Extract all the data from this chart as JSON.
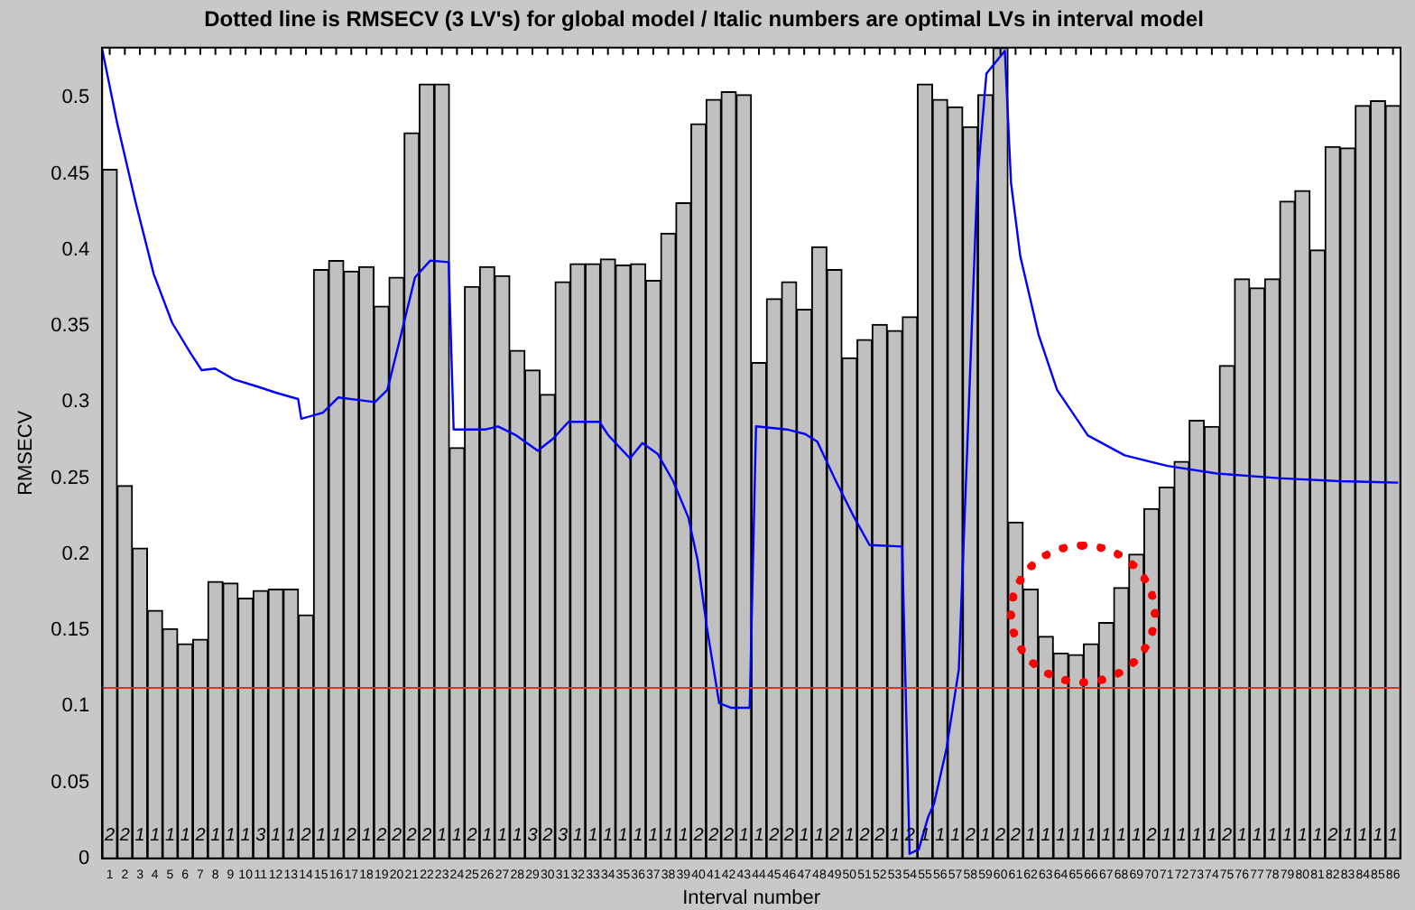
{
  "chart_data": {
    "type": "bar",
    "title": "Dotted line is RMSECV (3 LV's) for global model / Italic numbers are optimal LVs in interval model",
    "xlabel": "Interval number",
    "ylabel": "RMSECV",
    "x": [
      1,
      2,
      3,
      4,
      5,
      6,
      7,
      8,
      9,
      10,
      11,
      12,
      13,
      14,
      15,
      16,
      17,
      18,
      19,
      20,
      21,
      22,
      23,
      24,
      25,
      26,
      27,
      28,
      29,
      30,
      31,
      32,
      33,
      34,
      35,
      36,
      37,
      38,
      39,
      40,
      41,
      42,
      43,
      44,
      45,
      46,
      47,
      48,
      49,
      50,
      51,
      52,
      53,
      54,
      55,
      56,
      57,
      58,
      59,
      60,
      61,
      62,
      63,
      64,
      65,
      66,
      67,
      68,
      69,
      70,
      71,
      72,
      73,
      74,
      75,
      76,
      77,
      78,
      79,
      80,
      81,
      82,
      83,
      84,
      85,
      86
    ],
    "xlim": [
      0.5,
      86.5
    ],
    "xticks": [
      1,
      2,
      3,
      4,
      5,
      6,
      7,
      8,
      9,
      10,
      11,
      12,
      13,
      14,
      15,
      16,
      17,
      18,
      19,
      20,
      21,
      22,
      23,
      24,
      25,
      26,
      27,
      28,
      29,
      30,
      31,
      32,
      33,
      34,
      35,
      36,
      37,
      38,
      39,
      40,
      41,
      42,
      43,
      44,
      45,
      46,
      47,
      48,
      49,
      50,
      51,
      52,
      53,
      54,
      55,
      56,
      57,
      58,
      59,
      60,
      61,
      62,
      63,
      64,
      65,
      66,
      67,
      68,
      69,
      70,
      71,
      72,
      73,
      74,
      75,
      76,
      77,
      78,
      79,
      80,
      81,
      82,
      83,
      84,
      85,
      86
    ],
    "series": [
      {
        "color": "#c0c0c0",
        "values": [
          0.453,
          0.245,
          0.204,
          0.163,
          0.151,
          0.141,
          0.144,
          0.182,
          0.181,
          0.171,
          0.176,
          0.177,
          0.177,
          0.16,
          0.387,
          0.393,
          0.386,
          0.389,
          0.363,
          0.382,
          0.477,
          0.509,
          0.509,
          0.27,
          0.376,
          0.389,
          0.383,
          0.334,
          0.321,
          0.305,
          0.379,
          0.391,
          0.391,
          0.394,
          0.39,
          0.391,
          0.38,
          0.411,
          0.431,
          0.483,
          0.499,
          0.504,
          0.502,
          0.326,
          0.368,
          0.379,
          0.361,
          0.402,
          0.387,
          0.329,
          0.341,
          0.351,
          0.347,
          0.356,
          0.509,
          0.499,
          0.494,
          0.481,
          0.502,
          0.533,
          0.221,
          0.177,
          0.146,
          0.135,
          0.134,
          0.141,
          0.155,
          0.178,
          0.2,
          0.23,
          0.244,
          0.261,
          0.288,
          0.284,
          0.324,
          0.381,
          0.375,
          0.381,
          0.432,
          0.439,
          0.4,
          0.468,
          0.467,
          0.495,
          0.498,
          0.495
        ]
      },
      {
        "type": "line",
        "color": "#0000ff",
        "x": [
          0.5,
          1.48,
          2.7,
          3.92,
          5.14,
          6.36,
          7.09,
          7.98,
          9.21,
          10.84,
          12.06,
          13.48,
          13.69,
          15.12,
          16.13,
          18.57,
          19.39,
          20.19,
          21.22,
          22.23,
          23.45,
          23.78,
          25.9,
          26.72,
          27.94,
          29.35,
          30.38,
          31.39,
          33.43,
          34.04,
          35.46,
          36.28,
          37.29,
          38.32,
          39.33,
          39.94,
          40.55,
          41.37,
          42.17,
          43.39,
          43.81,
          45.84,
          47.06,
          47.87,
          49.1,
          50.32,
          51.33,
          53.49,
          53.98,
          54.59,
          55.2,
          55.6,
          56.42,
          57.24,
          57.85,
          58.46,
          59.07,
          60.29,
          60.7,
          61.31,
          62.53,
          63.75,
          65.79,
          68.23,
          71.07,
          74.33,
          78.4,
          82.47,
          86.34
        ],
        "values": [
          0.532,
          0.484,
          0.432,
          0.384,
          0.352,
          0.332,
          0.321,
          0.322,
          0.315,
          0.31,
          0.306,
          0.302,
          0.289,
          0.293,
          0.303,
          0.3,
          0.308,
          0.34,
          0.382,
          0.393,
          0.392,
          0.282,
          0.282,
          0.284,
          0.278,
          0.268,
          0.276,
          0.287,
          0.287,
          0.278,
          0.263,
          0.273,
          0.266,
          0.248,
          0.224,
          0.196,
          0.152,
          0.102,
          0.099,
          0.099,
          0.284,
          0.282,
          0.279,
          0.274,
          0.248,
          0.224,
          0.206,
          0.205,
          0.003,
          0.006,
          0.027,
          0.036,
          0.072,
          0.124,
          0.283,
          0.444,
          0.516,
          0.531,
          0.444,
          0.396,
          0.344,
          0.308,
          0.278,
          0.265,
          0.258,
          0.253,
          0.25,
          0.248,
          0.247
        ]
      }
    ],
    "ylim": [
      0,
      0.533
    ],
    "yticks": [
      0,
      0.05,
      0.1,
      0.15,
      0.2,
      0.25,
      0.3,
      0.35,
      0.4,
      0.45,
      0.5
    ],
    "ref_lines": [
      {
        "axis": "y",
        "value": 0.112,
        "color": "#e03020"
      }
    ],
    "marker": "none",
    "line_style": "solid",
    "legend": false,
    "grid": false,
    "annotations": [
      {
        "text": "2",
        "x": 1,
        "y": 0.015
      },
      {
        "text": "2",
        "x": 2,
        "y": 0.015
      },
      {
        "text": "1",
        "x": 3,
        "y": 0.015
      },
      {
        "text": "1",
        "x": 4,
        "y": 0.015
      },
      {
        "text": "1",
        "x": 5,
        "y": 0.015
      },
      {
        "text": "1",
        "x": 6,
        "y": 0.015
      },
      {
        "text": "2",
        "x": 7,
        "y": 0.015
      },
      {
        "text": "1",
        "x": 8,
        "y": 0.015
      },
      {
        "text": "1",
        "x": 9,
        "y": 0.015
      },
      {
        "text": "1",
        "x": 10,
        "y": 0.015
      },
      {
        "text": "3",
        "x": 11,
        "y": 0.015
      },
      {
        "text": "1",
        "x": 12,
        "y": 0.015
      },
      {
        "text": "1",
        "x": 13,
        "y": 0.015
      },
      {
        "text": "2",
        "x": 14,
        "y": 0.015
      },
      {
        "text": "1",
        "x": 15,
        "y": 0.015
      },
      {
        "text": "1",
        "x": 16,
        "y": 0.015
      },
      {
        "text": "2",
        "x": 17,
        "y": 0.015
      },
      {
        "text": "1",
        "x": 18,
        "y": 0.015
      },
      {
        "text": "2",
        "x": 19,
        "y": 0.015
      },
      {
        "text": "2",
        "x": 20,
        "y": 0.015
      },
      {
        "text": "2",
        "x": 21,
        "y": 0.015
      },
      {
        "text": "2",
        "x": 22,
        "y": 0.015
      },
      {
        "text": "1",
        "x": 23,
        "y": 0.015
      },
      {
        "text": "1",
        "x": 24,
        "y": 0.015
      },
      {
        "text": "2",
        "x": 25,
        "y": 0.015
      },
      {
        "text": "1",
        "x": 26,
        "y": 0.015
      },
      {
        "text": "1",
        "x": 27,
        "y": 0.015
      },
      {
        "text": "1",
        "x": 28,
        "y": 0.015
      },
      {
        "text": "3",
        "x": 29,
        "y": 0.015
      },
      {
        "text": "2",
        "x": 30,
        "y": 0.015
      },
      {
        "text": "3",
        "x": 31,
        "y": 0.015
      },
      {
        "text": "1",
        "x": 32,
        "y": 0.015
      },
      {
        "text": "1",
        "x": 33,
        "y": 0.015
      },
      {
        "text": "1",
        "x": 34,
        "y": 0.015
      },
      {
        "text": "1",
        "x": 35,
        "y": 0.015
      },
      {
        "text": "1",
        "x": 36,
        "y": 0.015
      },
      {
        "text": "1",
        "x": 37,
        "y": 0.015
      },
      {
        "text": "1",
        "x": 38,
        "y": 0.015
      },
      {
        "text": "1",
        "x": 39,
        "y": 0.015
      },
      {
        "text": "2",
        "x": 40,
        "y": 0.015
      },
      {
        "text": "2",
        "x": 41,
        "y": 0.015
      },
      {
        "text": "2",
        "x": 42,
        "y": 0.015
      },
      {
        "text": "1",
        "x": 43,
        "y": 0.015
      },
      {
        "text": "1",
        "x": 44,
        "y": 0.015
      },
      {
        "text": "2",
        "x": 45,
        "y": 0.015
      },
      {
        "text": "2",
        "x": 46,
        "y": 0.015
      },
      {
        "text": "1",
        "x": 47,
        "y": 0.015
      },
      {
        "text": "1",
        "x": 48,
        "y": 0.015
      },
      {
        "text": "2",
        "x": 49,
        "y": 0.015
      },
      {
        "text": "1",
        "x": 50,
        "y": 0.015
      },
      {
        "text": "2",
        "x": 51,
        "y": 0.015
      },
      {
        "text": "2",
        "x": 52,
        "y": 0.015
      },
      {
        "text": "1",
        "x": 53,
        "y": 0.015
      },
      {
        "text": "2",
        "x": 54,
        "y": 0.015
      },
      {
        "text": "1",
        "x": 55,
        "y": 0.015
      },
      {
        "text": "1",
        "x": 56,
        "y": 0.015
      },
      {
        "text": "1",
        "x": 57,
        "y": 0.015
      },
      {
        "text": "2",
        "x": 58,
        "y": 0.015
      },
      {
        "text": "1",
        "x": 59,
        "y": 0.015
      },
      {
        "text": "2",
        "x": 60,
        "y": 0.015
      },
      {
        "text": "2",
        "x": 61,
        "y": 0.015
      },
      {
        "text": "1",
        "x": 62,
        "y": 0.015
      },
      {
        "text": "1",
        "x": 63,
        "y": 0.015
      },
      {
        "text": "1",
        "x": 64,
        "y": 0.015
      },
      {
        "text": "1",
        "x": 65,
        "y": 0.015
      },
      {
        "text": "1",
        "x": 66,
        "y": 0.015
      },
      {
        "text": "1",
        "x": 67,
        "y": 0.015
      },
      {
        "text": "1",
        "x": 68,
        "y": 0.015
      },
      {
        "text": "1",
        "x": 69,
        "y": 0.015
      },
      {
        "text": "2",
        "x": 70,
        "y": 0.015
      },
      {
        "text": "1",
        "x": 71,
        "y": 0.015
      },
      {
        "text": "1",
        "x": 72,
        "y": 0.015
      },
      {
        "text": "1",
        "x": 73,
        "y": 0.015
      },
      {
        "text": "1",
        "x": 74,
        "y": 0.015
      },
      {
        "text": "2",
        "x": 75,
        "y": 0.015
      },
      {
        "text": "1",
        "x": 76,
        "y": 0.015
      },
      {
        "text": "1",
        "x": 77,
        "y": 0.015
      },
      {
        "text": "1",
        "x": 78,
        "y": 0.015
      },
      {
        "text": "1",
        "x": 79,
        "y": 0.015
      },
      {
        "text": "1",
        "x": 80,
        "y": 0.015
      },
      {
        "text": "1",
        "x": 81,
        "y": 0.015
      },
      {
        "text": "2",
        "x": 82,
        "y": 0.015
      },
      {
        "text": "1",
        "x": 83,
        "y": 0.015
      },
      {
        "text": "1",
        "x": 84,
        "y": 0.015
      },
      {
        "text": "1",
        "x": 85,
        "y": 0.015
      },
      {
        "text": "1",
        "x": 86,
        "y": 0.015
      }
    ]
  }
}
